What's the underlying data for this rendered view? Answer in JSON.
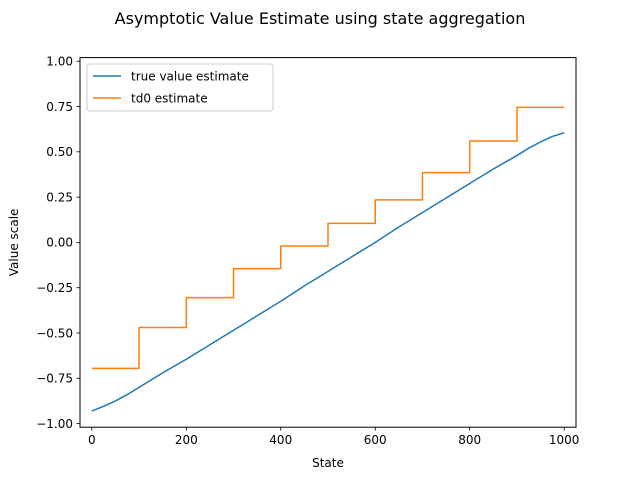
{
  "chart_data": {
    "type": "line",
    "title": "Asymptotic Value Estimate using state aggregation",
    "xlabel": "State",
    "ylabel": "Value scale",
    "xlim": [
      -25,
      1025
    ],
    "ylim": [
      -1.02,
      1.02
    ],
    "xticks": [
      0,
      200,
      400,
      600,
      800,
      1000
    ],
    "xtick_labels": [
      "0",
      "200",
      "400",
      "600",
      "800",
      "1000"
    ],
    "yticks": [
      -1.0,
      -0.75,
      -0.5,
      -0.25,
      0.0,
      0.25,
      0.5,
      0.75,
      1.0
    ],
    "ytick_labels": [
      "−1.00",
      "−0.75",
      "−0.50",
      "−0.25",
      "0.00",
      "0.25",
      "0.50",
      "0.75",
      "1.00"
    ],
    "grid": false,
    "legend_position": "top-left",
    "series": [
      {
        "name": "true value estimate",
        "color": "#1f77b4",
        "x": [
          0,
          25,
          50,
          75,
          100,
          150,
          200,
          250,
          300,
          350,
          400,
          450,
          500,
          550,
          600,
          650,
          700,
          750,
          800,
          850,
          900,
          925,
          950,
          975,
          1000
        ],
        "y": [
          -0.93,
          -0.905,
          -0.875,
          -0.84,
          -0.8,
          -0.72,
          -0.645,
          -0.565,
          -0.485,
          -0.405,
          -0.325,
          -0.24,
          -0.16,
          -0.08,
          0.0,
          0.085,
          0.165,
          0.245,
          0.325,
          0.405,
          0.48,
          0.52,
          0.555,
          0.585,
          0.605
        ]
      },
      {
        "name": "td0 estimate",
        "color": "#ff7f0e",
        "x": [
          0,
          100,
          100,
          200,
          200,
          300,
          300,
          400,
          400,
          500,
          500,
          600,
          600,
          700,
          700,
          800,
          800,
          900,
          900,
          1000
        ],
        "y": [
          -0.695,
          -0.695,
          -0.47,
          -0.47,
          -0.305,
          -0.305,
          -0.145,
          -0.145,
          -0.02,
          -0.02,
          0.105,
          0.105,
          0.235,
          0.235,
          0.385,
          0.385,
          0.56,
          0.56,
          0.745,
          0.745
        ]
      }
    ]
  }
}
